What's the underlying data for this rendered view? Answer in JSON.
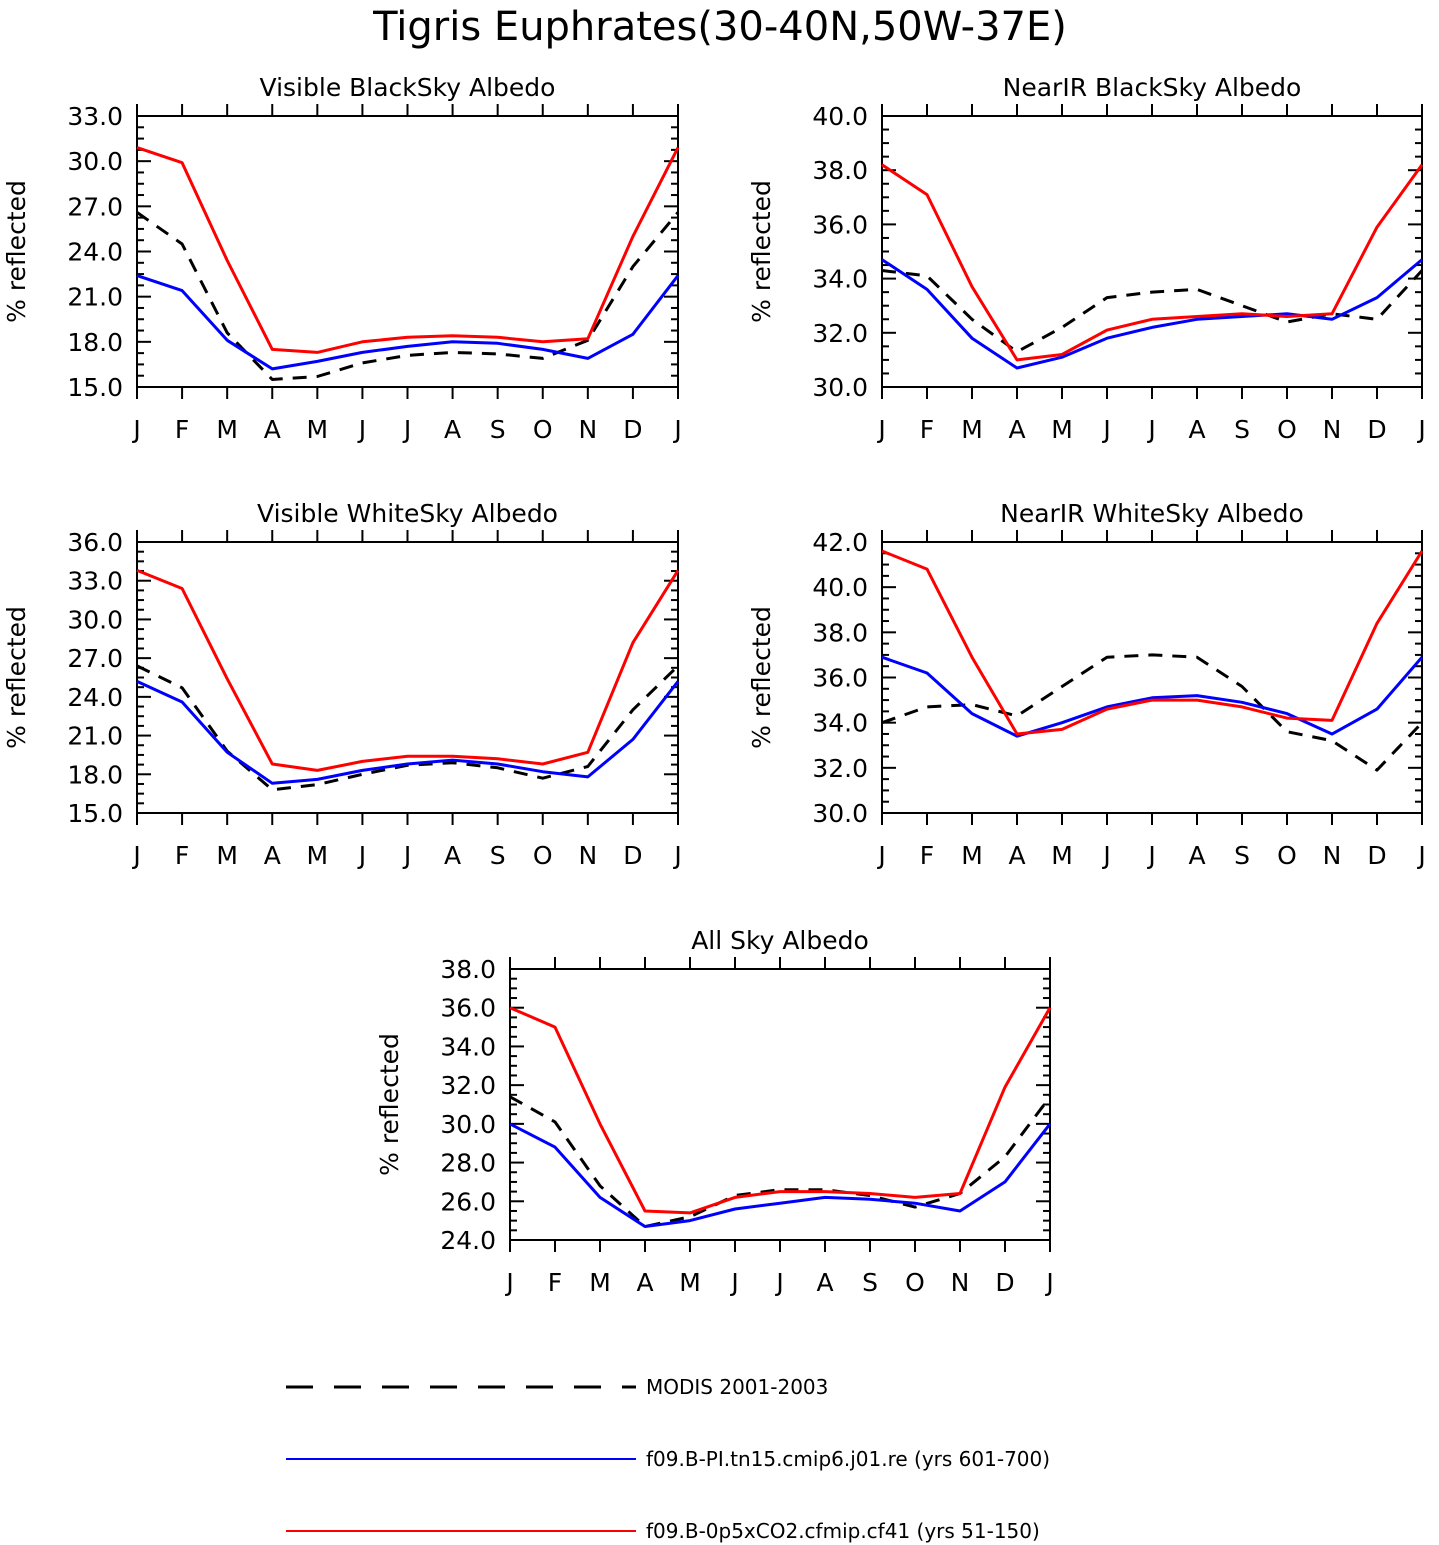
{
  "figure": {
    "title": "Tigris Euphrates(30-40N,50W-37E)"
  },
  "legend": [
    {
      "label": "MODIS 2001-2003",
      "color": "#000000",
      "dashed": true
    },
    {
      "label": "f09.B-PI.tn15.cmip6.j01.re (yrs 601-700)",
      "color": "#0000ff",
      "dashed": false
    },
    {
      "label": "f09.B-0p5xCO2.cfmip.cf41 (yrs 51-150)",
      "color": "#ff0000",
      "dashed": false
    }
  ],
  "chart_data": [
    {
      "type": "line",
      "title": "Visible BlackSky Albedo",
      "ylabel": "% reflected",
      "categories": [
        "J",
        "F",
        "M",
        "A",
        "M",
        "J",
        "J",
        "A",
        "S",
        "O",
        "N",
        "D",
        "J"
      ],
      "ylim": [
        15.0,
        33.0
      ],
      "yticks": [
        "15.0",
        "18.0",
        "21.0",
        "24.0",
        "27.0",
        "30.0",
        "33.0"
      ],
      "series": [
        {
          "style": "modis",
          "values": [
            26.6,
            24.5,
            18.6,
            15.5,
            15.7,
            16.6,
            17.1,
            17.3,
            17.2,
            16.9,
            18.1,
            23.0,
            26.6
          ]
        },
        {
          "style": "pi",
          "values": [
            22.4,
            21.4,
            18.1,
            16.2,
            16.7,
            17.3,
            17.7,
            18.0,
            17.9,
            17.5,
            16.9,
            18.5,
            22.4
          ]
        },
        {
          "style": "co2",
          "values": [
            30.9,
            29.9,
            23.4,
            17.5,
            17.3,
            18.0,
            18.3,
            18.4,
            18.3,
            18.0,
            18.2,
            25.0,
            30.9
          ]
        }
      ]
    },
    {
      "type": "line",
      "title": "NearIR BlackSky Albedo",
      "ylabel": "% reflected",
      "categories": [
        "J",
        "F",
        "M",
        "A",
        "M",
        "J",
        "J",
        "A",
        "S",
        "O",
        "N",
        "D",
        "J"
      ],
      "ylim": [
        30.0,
        40.0
      ],
      "yticks": [
        "30.0",
        "32.0",
        "34.0",
        "36.0",
        "38.0",
        "40.0"
      ],
      "series": [
        {
          "style": "modis",
          "values": [
            34.3,
            34.1,
            32.5,
            31.3,
            32.2,
            33.3,
            33.5,
            33.6,
            33.0,
            32.4,
            32.7,
            32.5,
            34.3
          ]
        },
        {
          "style": "pi",
          "values": [
            34.7,
            33.6,
            31.8,
            30.7,
            31.1,
            31.8,
            32.2,
            32.5,
            32.6,
            32.7,
            32.5,
            33.3,
            34.7
          ]
        },
        {
          "style": "co2",
          "values": [
            38.2,
            37.1,
            33.7,
            31.0,
            31.2,
            32.1,
            32.5,
            32.6,
            32.7,
            32.6,
            32.7,
            35.9,
            38.2
          ]
        }
      ]
    },
    {
      "type": "line",
      "title": "Visible WhiteSky Albedo",
      "ylabel": "% reflected",
      "categories": [
        "J",
        "F",
        "M",
        "A",
        "M",
        "J",
        "J",
        "A",
        "S",
        "O",
        "N",
        "D",
        "J"
      ],
      "ylim": [
        15.0,
        36.0
      ],
      "yticks": [
        "15.0",
        "18.0",
        "21.0",
        "24.0",
        "27.0",
        "30.0",
        "33.0",
        "36.0"
      ],
      "series": [
        {
          "style": "modis",
          "values": [
            26.4,
            24.7,
            19.8,
            16.8,
            17.2,
            18.0,
            18.7,
            18.9,
            18.5,
            17.7,
            18.6,
            23.0,
            26.4
          ]
        },
        {
          "style": "pi",
          "values": [
            25.2,
            23.6,
            19.7,
            17.3,
            17.6,
            18.3,
            18.8,
            19.1,
            18.8,
            18.2,
            17.8,
            20.7,
            25.2
          ]
        },
        {
          "style": "co2",
          "values": [
            33.8,
            32.4,
            25.4,
            18.8,
            18.3,
            19.0,
            19.4,
            19.4,
            19.2,
            18.8,
            19.7,
            28.2,
            33.8
          ]
        }
      ]
    },
    {
      "type": "line",
      "title": "NearIR WhiteSky Albedo",
      "ylabel": "% reflected",
      "categories": [
        "J",
        "F",
        "M",
        "A",
        "M",
        "J",
        "J",
        "A",
        "S",
        "O",
        "N",
        "D",
        "J"
      ],
      "ylim": [
        30.0,
        42.0
      ],
      "yticks": [
        "30.0",
        "32.0",
        "34.0",
        "36.0",
        "38.0",
        "40.0",
        "42.0"
      ],
      "series": [
        {
          "style": "modis",
          "values": [
            34.0,
            34.7,
            34.8,
            34.3,
            35.6,
            36.9,
            37.0,
            36.9,
            35.6,
            33.6,
            33.2,
            31.9,
            34.0
          ]
        },
        {
          "style": "pi",
          "values": [
            36.9,
            36.2,
            34.4,
            33.4,
            34.0,
            34.7,
            35.1,
            35.2,
            34.9,
            34.4,
            33.5,
            34.6,
            36.9
          ]
        },
        {
          "style": "co2",
          "values": [
            41.6,
            40.8,
            36.9,
            33.5,
            33.7,
            34.6,
            35.0,
            35.0,
            34.7,
            34.2,
            34.1,
            38.4,
            41.6
          ]
        }
      ]
    },
    {
      "type": "line",
      "title": "All Sky Albedo",
      "ylabel": "% reflected",
      "categories": [
        "J",
        "F",
        "M",
        "A",
        "M",
        "J",
        "J",
        "A",
        "S",
        "O",
        "N",
        "D",
        "J"
      ],
      "ylim": [
        24.0,
        38.0
      ],
      "yticks": [
        "24.0",
        "26.0",
        "28.0",
        "30.0",
        "32.0",
        "34.0",
        "36.0",
        "38.0"
      ],
      "series": [
        {
          "style": "modis",
          "values": [
            31.4,
            30.1,
            26.8,
            24.7,
            25.2,
            26.3,
            26.6,
            26.6,
            26.3,
            25.7,
            26.4,
            28.3,
            31.4
          ]
        },
        {
          "style": "pi",
          "values": [
            30.0,
            28.8,
            26.2,
            24.7,
            25.0,
            25.6,
            25.9,
            26.2,
            26.1,
            25.9,
            25.5,
            27.0,
            30.0
          ]
        },
        {
          "style": "co2",
          "values": [
            36.0,
            35.0,
            30.0,
            25.5,
            25.4,
            26.2,
            26.5,
            26.5,
            26.4,
            26.2,
            26.4,
            31.9,
            36.0
          ]
        }
      ]
    }
  ]
}
